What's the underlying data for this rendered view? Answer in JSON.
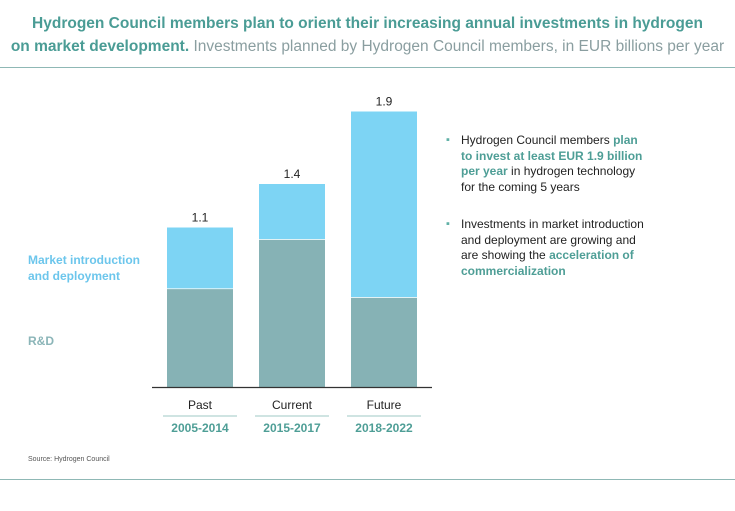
{
  "title": {
    "bold_line1": "Hydrogen Council members plan to orient their increasing annual investments in hydrogen",
    "bold_line2": "on market development.",
    "subtitle": " Investments planned by Hydrogen Council members, in EUR billions per year"
  },
  "legend": {
    "market": [
      "Market introduction",
      "and deployment"
    ],
    "rd": "R&D"
  },
  "chart_data": {
    "type": "bar",
    "stacked": true,
    "categories": [
      "Past",
      "Current",
      "Future"
    ],
    "periods": [
      "2005-2014",
      "2015-2017",
      "2018-2022"
    ],
    "totals": [
      "1.1",
      "1.4",
      "1.9"
    ],
    "series": [
      {
        "name": "R&D",
        "values": [
          0.68,
          1.02,
          0.62
        ],
        "color": "#86b2b5"
      },
      {
        "name": "Market introduction and deployment",
        "values": [
          0.42,
          0.38,
          1.28
        ],
        "color": "#7dd4f4"
      }
    ],
    "ylim": [
      0,
      2.0
    ],
    "title": "Investments planned by Hydrogen Council members, in EUR billions per year"
  },
  "notes": [
    {
      "lines": [
        [
          {
            "t": "Hydrogen Council members ",
            "hl": false
          },
          {
            "t": "plan",
            "hl": true
          }
        ],
        [
          {
            "t": "to invest at least EUR 1.9 billion",
            "hl": true
          }
        ],
        [
          {
            "t": "per year",
            "hl": true
          },
          {
            "t": " in hydrogen technology",
            "hl": false
          }
        ],
        [
          {
            "t": "for the coming 5 years",
            "hl": false
          }
        ]
      ]
    },
    {
      "lines": [
        [
          {
            "t": "Investments in market introduction",
            "hl": false
          }
        ],
        [
          {
            "t": "and deployment are growing and",
            "hl": false
          }
        ],
        [
          {
            "t": "are showing the ",
            "hl": false
          },
          {
            "t": "acceleration of",
            "hl": true
          }
        ],
        [
          {
            "t": "commercialization",
            "hl": true
          }
        ]
      ]
    }
  ],
  "bullet": "▪",
  "source": "Source: Hydrogen Council",
  "colors": {
    "accent": "#4a9c95",
    "market": "#7dd4f4",
    "rd": "#86b2b5"
  }
}
